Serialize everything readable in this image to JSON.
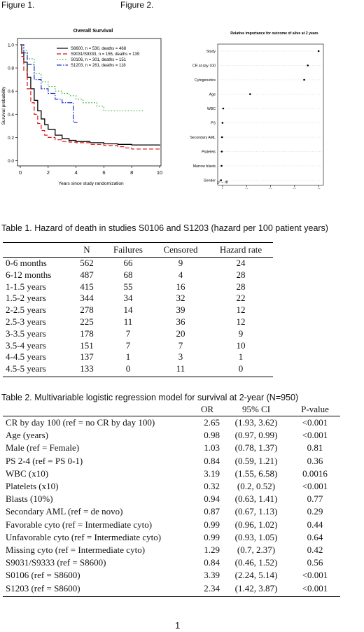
{
  "figure_labels": [
    "Figure 1.",
    "Figure 2."
  ],
  "chart_data": [
    {
      "type": "line",
      "title": "Overall Survival",
      "xlabel": "Years since study randomization",
      "ylabel": "Survival probability",
      "xlim": [
        0,
        10
      ],
      "ylim": [
        0,
        1
      ],
      "xticks": [
        "0",
        "2",
        "4",
        "6",
        "8",
        "10"
      ],
      "yticks": [
        "0.0",
        "0.2",
        "0.4",
        "0.6",
        "0.8",
        "1.0"
      ],
      "legend_position": "top-right",
      "series": [
        {
          "name": "S8600, n = 530, deaths = 468",
          "color": "#000000",
          "dash": "solid",
          "x": [
            0,
            0.1,
            0.25,
            0.5,
            0.75,
            1,
            1.25,
            1.5,
            1.75,
            2,
            2.5,
            3,
            3.5,
            4,
            5,
            6,
            7,
            8,
            9,
            10
          ],
          "y": [
            1,
            0.93,
            0.85,
            0.72,
            0.62,
            0.52,
            0.43,
            0.36,
            0.31,
            0.27,
            0.22,
            0.19,
            0.175,
            0.165,
            0.155,
            0.145,
            0.14,
            0.135,
            0.135,
            0.13
          ]
        },
        {
          "name": "S9031/S9333, n = 155, deaths = 139",
          "color": "#dd1111",
          "dash": "6,3",
          "x": [
            0,
            0.1,
            0.25,
            0.5,
            0.75,
            1,
            1.25,
            1.5,
            1.75,
            2,
            2.5,
            3,
            3.5,
            4,
            5,
            6,
            7,
            7.5,
            8,
            9,
            10
          ],
          "y": [
            1,
            0.9,
            0.78,
            0.62,
            0.5,
            0.4,
            0.32,
            0.26,
            0.22,
            0.2,
            0.18,
            0.165,
            0.16,
            0.155,
            0.14,
            0.13,
            0.12,
            0.11,
            0.1,
            0.1,
            0.1
          ]
        },
        {
          "name": "S0106, n = 301, deaths = 151",
          "color": "#33aa33",
          "dash": "1.5,2.5",
          "x": [
            0,
            0.25,
            0.5,
            1,
            1.5,
            2,
            2.5,
            3,
            3.5,
            4,
            4.5,
            5,
            5.5,
            6,
            7,
            8,
            8.8
          ],
          "y": [
            1,
            0.95,
            0.88,
            0.75,
            0.68,
            0.64,
            0.6,
            0.58,
            0.56,
            0.53,
            0.5,
            0.5,
            0.47,
            0.43,
            0.43,
            0.43,
            0.43
          ]
        },
        {
          "name": "S1203, n = 261, deaths = 118",
          "color": "#2233cc",
          "dash": "7,2,1.5,2",
          "x": [
            0,
            0.25,
            0.5,
            1,
            1.5,
            2,
            2.5,
            3,
            3.5,
            3.8,
            4,
            4.1
          ],
          "y": [
            1,
            0.93,
            0.83,
            0.7,
            0.62,
            0.58,
            0.53,
            0.5,
            0.5,
            0.33,
            0.33,
            0.33
          ]
        }
      ]
    },
    {
      "type": "scatter",
      "title": "Relative importance for outcome of alive at 2 years",
      "xlabel": "χ² − df",
      "xlim": [
        -2,
        42
      ],
      "xticks": [
        "0",
        "10",
        "20",
        "30",
        "40"
      ],
      "categories": [
        "Study",
        "CR at day 100",
        "Cytogenetics",
        "Age",
        "WBC",
        "PS",
        "Secondary AML",
        "Platelets",
        "Marrow blasts",
        "Gender"
      ],
      "values": [
        40,
        35.5,
        34,
        11.5,
        0.3,
        0,
        -0.2,
        -0.3,
        -0.4,
        -0.6
      ]
    }
  ],
  "table1": {
    "caption": "Table 1.  Hazard of death in studies S0106 and S1203 (hazard per 100 patient years)",
    "headers": [
      "",
      "N",
      "Failures",
      "Censored",
      "Hazard rate"
    ],
    "rows": [
      [
        "0-6 months",
        "562",
        "66",
        "9",
        "24"
      ],
      [
        "6-12 months",
        "487",
        "68",
        "4",
        "28"
      ],
      [
        "1-1.5 years",
        "415",
        "55",
        "16",
        "28"
      ],
      [
        "1.5-2 years",
        "344",
        "34",
        "32",
        "22"
      ],
      [
        "2-2.5 years",
        "278",
        "14",
        "39",
        "12"
      ],
      [
        "2.5-3 years",
        "225",
        "11",
        "36",
        "12"
      ],
      [
        "3-3.5 years",
        "178",
        "7",
        "20",
        "9"
      ],
      [
        "3.5-4 years",
        "151",
        "7",
        "7",
        "10"
      ],
      [
        "4-4.5 years",
        "137",
        "1",
        "3",
        "1"
      ],
      [
        "4.5-5 years",
        "133",
        "0",
        "11",
        "0"
      ]
    ]
  },
  "table2": {
    "caption": "Table 2.  Multivariable logistic regression model for survival at 2-year (N=950)",
    "headers": [
      "",
      "OR",
      "95% CI",
      "P-value"
    ],
    "rows": [
      [
        "CR by day 100 (ref = no CR by day 100)",
        "2.65",
        "(1.93, 3.62)",
        "<0.001"
      ],
      [
        "Age (years)",
        "0.98",
        "(0.97, 0.99)",
        "<0.001"
      ],
      [
        "Male (ref = Female)",
        "1.03",
        "(0.78, 1.37)",
        "0.81"
      ],
      [
        "PS 2-4 (ref = PS 0-1)",
        "0.84",
        "(0.59, 1.21)",
        "0.36"
      ],
      [
        "WBC (x10)",
        "3.19",
        "(1.55, 6.58)",
        "0.0016"
      ],
      [
        "Platelets (x10)",
        "0.32",
        "(0.2, 0.52)",
        "<0.001"
      ],
      [
        "Blasts (10%)",
        "0.94",
        "(0.63, 1.41)",
        "0.77"
      ],
      [
        "Secondary AML (ref = de novo)",
        "0.87",
        "(0.67, 1.13)",
        "0.29"
      ],
      [
        "Favorable cyto (ref = Intermediate cyto)",
        "0.99",
        "(0.96, 1.02)",
        "0.44"
      ],
      [
        "Unfavorable cyto (ref = Intermediate cyto)",
        "0.99",
        "(0.93, 1.05)",
        "0.64"
      ],
      [
        "Missing cyto (ref = Intermediate cyto)",
        "1.29",
        "(0.7, 2.37)",
        "0.42"
      ],
      [
        "S9031/S9333 (ref = S8600)",
        "0.84",
        "(0.46, 1.52)",
        "0.56"
      ],
      [
        "S0106 (ref = S8600)",
        "3.39",
        "(2.24, 5.14)",
        "<0.001"
      ],
      [
        "S1203 (ref = S8600)",
        "2.34",
        "(1.42, 3.87)",
        "<0.001"
      ]
    ]
  },
  "page_number": "1"
}
